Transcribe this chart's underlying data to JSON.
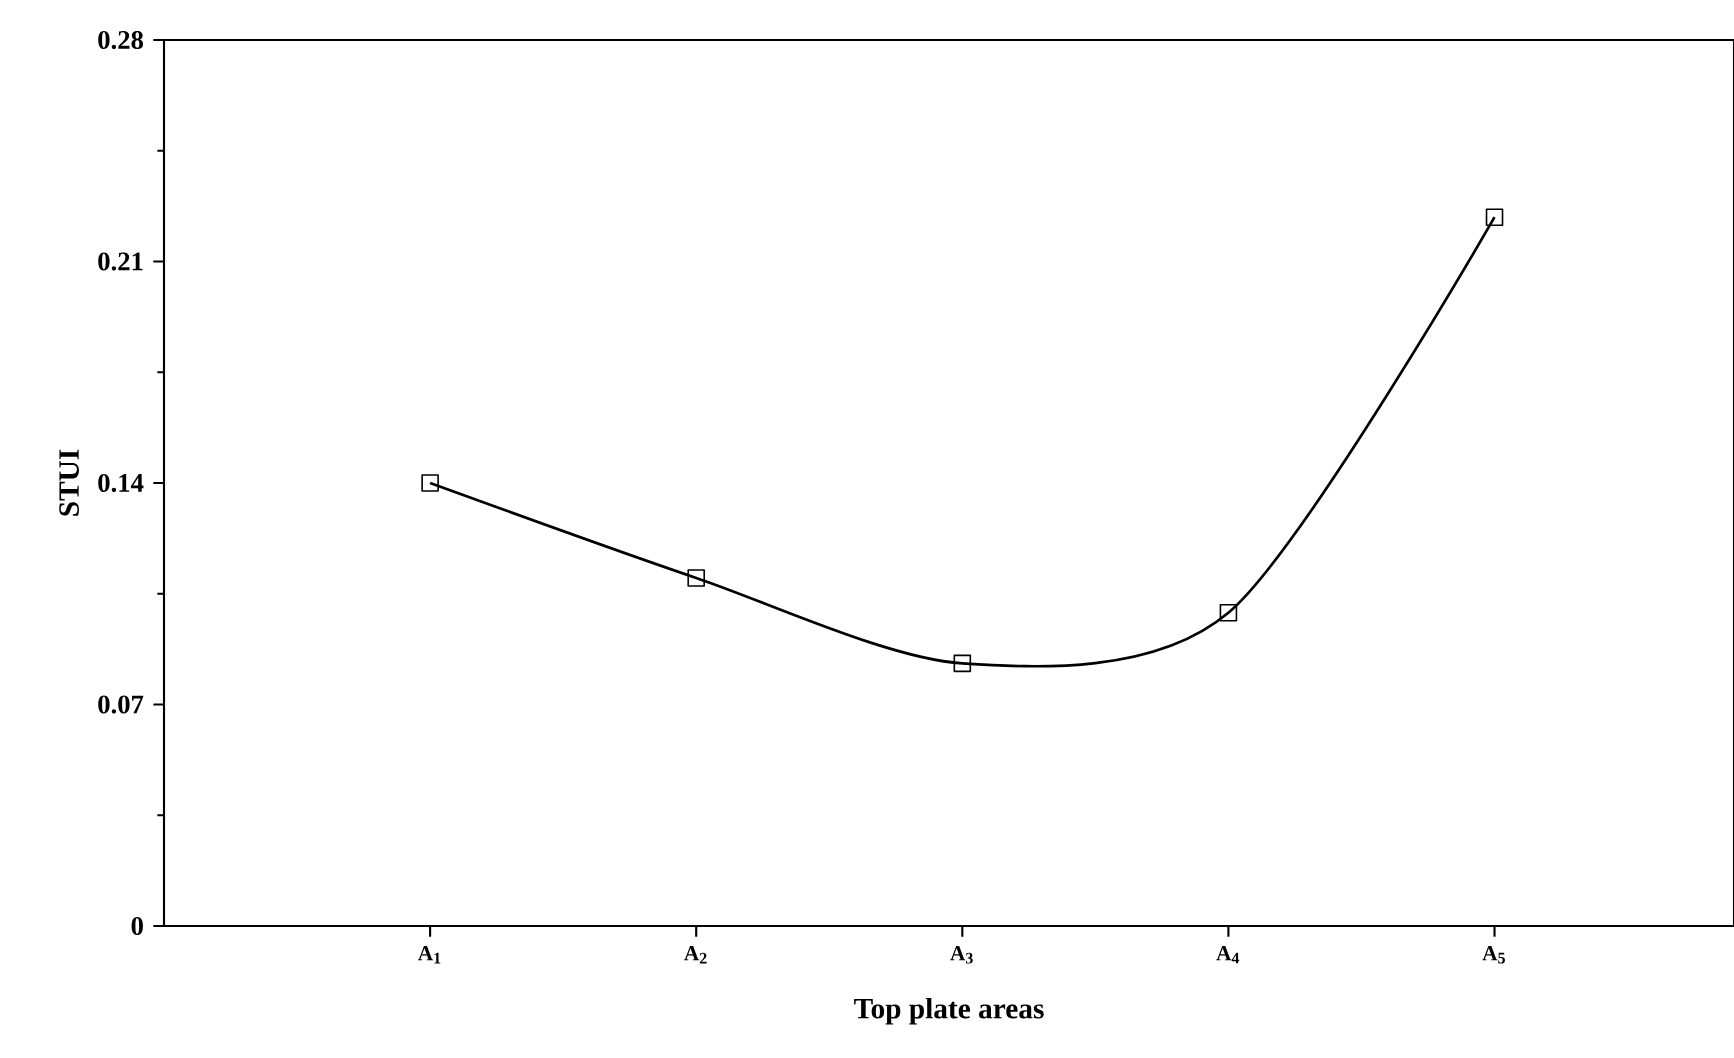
{
  "chart_data": {
    "type": "line",
    "xlabel": "Top plate areas",
    "ylabel": "STUI",
    "categories": [
      "A$_{1}$",
      "A$_{2}$",
      "A$_{3}$",
      "A$_{4}$",
      "A$_{5}$"
    ],
    "series": [
      {
        "color": "#000000",
        "values": [
          0.14,
          0.11,
          0.083,
          0.099,
          0.224
        ]
      }
    ],
    "ylim": [
      0,
      0.28
    ],
    "yticks": [
      0,
      0.07,
      0.14,
      0.21,
      0.28
    ],
    "marker": "square",
    "line_style": "solid"
  }
}
